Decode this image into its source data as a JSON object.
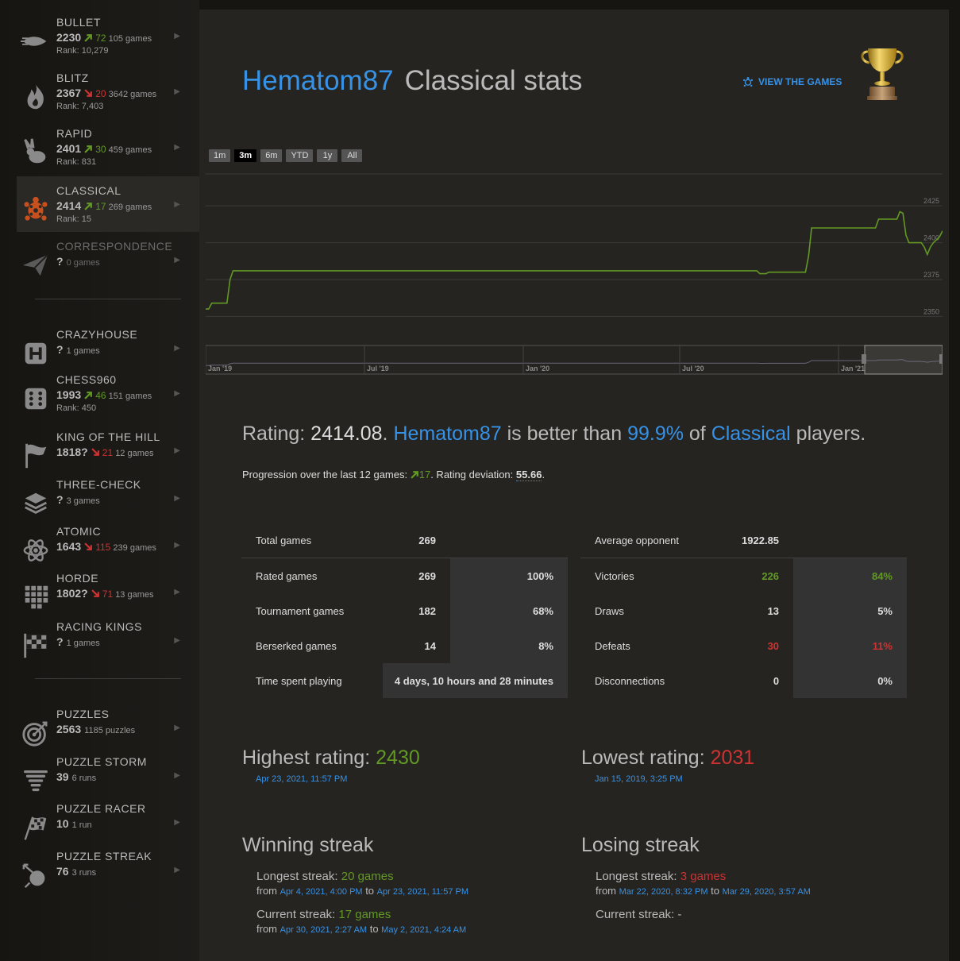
{
  "sidebar": {
    "perfs": [
      {
        "name": "BULLET",
        "rating": "2230",
        "dir": "up",
        "prog": "72",
        "count": "105 games",
        "rank": "Rank: 10,279",
        "icon": "bullet-icon"
      },
      {
        "name": "BLITZ",
        "rating": "2367",
        "dir": "down",
        "prog": "20",
        "count": "3642 games",
        "rank": "Rank: 7,403",
        "icon": "flame-icon"
      },
      {
        "name": "RAPID",
        "rating": "2401",
        "dir": "up",
        "prog": "30",
        "count": "459 games",
        "rank": "Rank: 831",
        "icon": "rabbit-icon"
      },
      {
        "name": "CLASSICAL",
        "rating": "2414",
        "dir": "up",
        "prog": "17",
        "count": "269 games",
        "rank": "Rank: 15",
        "icon": "turtle-icon"
      },
      {
        "name": "CORRESPONDENCE",
        "rating": "?",
        "dir": "",
        "prog": "",
        "count": "0 games",
        "rank": "",
        "icon": "paper-plane-icon"
      },
      {
        "name": "CRAZYHOUSE",
        "rating": "?",
        "dir": "",
        "prog": "",
        "count": "1 games",
        "rank": "",
        "icon": "crazyhouse-icon"
      },
      {
        "name": "CHESS960",
        "rating": "1993",
        "dir": "up",
        "prog": "46",
        "count": "151 games",
        "rank": "Rank: 450",
        "icon": "dice-icon"
      },
      {
        "name": "KING OF THE HILL",
        "rating": "1818?",
        "dir": "down",
        "prog": "21",
        "count": "12 games",
        "rank": "",
        "icon": "flag-icon"
      },
      {
        "name": "THREE-CHECK",
        "rating": "?",
        "dir": "",
        "prog": "",
        "count": "3 games",
        "rank": "",
        "icon": "layers-icon"
      },
      {
        "name": "ATOMIC",
        "rating": "1643",
        "dir": "down",
        "prog": "115",
        "count": "239 games",
        "rank": "",
        "icon": "atom-icon"
      },
      {
        "name": "HORDE",
        "rating": "1802?",
        "dir": "down",
        "prog": "71",
        "count": "13 games",
        "rank": "",
        "icon": "horde-icon"
      },
      {
        "name": "RACING KINGS",
        "rating": "?",
        "dir": "",
        "prog": "",
        "count": "1 games",
        "rank": "",
        "icon": "checkered-flag-icon"
      },
      {
        "name": "PUZZLES",
        "rating": "2563",
        "dir": "",
        "prog": "",
        "count": "1185 puzzles",
        "rank": "",
        "icon": "target-icon"
      },
      {
        "name": "PUZZLE STORM",
        "rating": "39",
        "dir": "",
        "prog": "",
        "count": "6 runs",
        "rank": "",
        "icon": "tornado-icon"
      },
      {
        "name": "PUZZLE RACER",
        "rating": "10",
        "dir": "",
        "prog": "",
        "count": "1 run",
        "rank": "",
        "icon": "racing-flag-icon"
      },
      {
        "name": "PUZZLE STREAK",
        "rating": "76",
        "dir": "",
        "prog": "",
        "count": "3 runs",
        "rank": "",
        "icon": "streak-icon"
      }
    ]
  },
  "header": {
    "username": "Hematom87",
    "title": "Classical stats",
    "view_games": "VIEW THE GAMES"
  },
  "range_buttons": [
    "1m",
    "3m",
    "6m",
    "YTD",
    "1y",
    "All"
  ],
  "range_selected": "3m",
  "chart_data": {
    "type": "line",
    "y_ticks": [
      "2425",
      "2400",
      "2375",
      "2350"
    ],
    "ylim": [
      2340,
      2445
    ],
    "x_ticks": [
      "Jan '19",
      "Jul '19",
      "Jan '20",
      "Jul '20",
      "Jan '21"
    ],
    "series": [
      {
        "values": [
          2355,
          2355,
          2359,
          2359,
          2359,
          2359,
          2359,
          2359,
          2375,
          2381,
          2381,
          2381,
          2381,
          2381,
          2381,
          2381,
          2381,
          2381,
          2381,
          2381,
          2381,
          2381,
          2381,
          2381,
          2381,
          2381,
          2381,
          2381,
          2381,
          2381,
          2381,
          2381,
          2381,
          2381,
          2381,
          2381,
          2381,
          2381,
          2381,
          2381,
          2381,
          2381,
          2381,
          2381,
          2381,
          2381,
          2381,
          2381,
          2381,
          2381,
          2381,
          2381,
          2381,
          2381,
          2381,
          2381,
          2381,
          2381,
          2381,
          2381,
          2381,
          2381,
          2381,
          2381,
          2381,
          2381,
          2381,
          2381,
          2381,
          2381,
          2381,
          2381,
          2381,
          2381,
          2381,
          2381,
          2381,
          2381,
          2381,
          2381,
          2381,
          2381,
          2381,
          2381,
          2381,
          2381,
          2381,
          2381,
          2381,
          2381,
          2381,
          2381,
          2381,
          2381,
          2381,
          2381,
          2381,
          2381,
          2381,
          2381,
          2381,
          2381,
          2381,
          2381,
          2381,
          2381,
          2381,
          2381,
          2381,
          2381,
          2381,
          2381,
          2381,
          2381,
          2381,
          2381,
          2381,
          2381,
          2381,
          2381,
          2381,
          2381,
          2381,
          2381,
          2381,
          2381,
          2381,
          2381,
          2381,
          2381,
          2381,
          2381,
          2381,
          2381,
          2381,
          2381,
          2381,
          2381,
          2381,
          2381,
          2381,
          2381,
          2381,
          2381,
          2381,
          2381,
          2381,
          2381,
          2381,
          2381,
          2381,
          2381,
          2381,
          2381,
          2381,
          2381,
          2381,
          2381,
          2381,
          2381,
          2381,
          2381,
          2381,
          2381,
          2381,
          2381,
          2381,
          2381,
          2381,
          2381,
          2381,
          2381,
          2381,
          2381,
          2381,
          2381,
          2381,
          2381,
          2381,
          2381,
          2381,
          2381,
          2379,
          2379,
          2379,
          2380,
          2380,
          2380,
          2380,
          2380,
          2380,
          2380,
          2380,
          2380,
          2380,
          2380,
          2380,
          2380,
          2391,
          2410,
          2410,
          2410,
          2410,
          2410,
          2410,
          2410,
          2410,
          2410,
          2410,
          2410,
          2410,
          2410,
          2410,
          2410,
          2410,
          2410,
          2410,
          2410,
          2410,
          2410,
          2410,
          2416,
          2416,
          2416,
          2416,
          2416,
          2416,
          2416,
          2421,
          2420,
          2405,
          2400,
          2400,
          2400,
          2400,
          2400,
          2397,
          2392,
          2397,
          2400,
          2402,
          2404,
          2408
        ]
      }
    ]
  },
  "rating_summary": {
    "prefix": "Rating: ",
    "rating": "2414.08",
    "dot": ". ",
    "user": "Hematom87",
    "better": " is better than ",
    "pct": "99.9%",
    "of": " of ",
    "variant": "Classical",
    "players": " players."
  },
  "progression": {
    "label": "Progression over the last 12 games: ",
    "value": "17",
    "dev_label": ". Rating deviation: ",
    "dev": "55.66",
    "end": "."
  },
  "left_table": [
    {
      "label": "Total games",
      "num": "269",
      "pct": ""
    },
    {
      "label": "Rated games",
      "num": "269",
      "pct": "100%"
    },
    {
      "label": "Tournament games",
      "num": "182",
      "pct": "68%"
    },
    {
      "label": "Berserked games",
      "num": "14",
      "pct": "8%"
    },
    {
      "label": "Time spent playing",
      "value": "4 days, 10 hours and 28 minutes"
    }
  ],
  "right_table": [
    {
      "label": "Average opponent",
      "num": "1922.85",
      "pct": ""
    },
    {
      "label": "Victories",
      "num": "226",
      "pct": "84%"
    },
    {
      "label": "Draws",
      "num": "13",
      "pct": "5%"
    },
    {
      "label": "Defeats",
      "num": "30",
      "pct": "11%"
    },
    {
      "label": "Disconnections",
      "num": "0",
      "pct": "0%"
    }
  ],
  "highest": {
    "label": "Highest rating: ",
    "value": "2430",
    "date": "Apr 23, 2021, 11:57 PM"
  },
  "lowest": {
    "label": "Lowest rating: ",
    "value": "2031",
    "date": "Jan 15, 2019, 3:25 PM"
  },
  "winning": {
    "title": "Winning streak",
    "longest_label": "Longest streak: ",
    "longest_n": "20",
    "games": " games",
    "longest_from": "Apr 4, 2021, 4:00 PM",
    "longest_to": "Apr 23, 2021, 11:57 PM",
    "current_label": "Current streak: ",
    "current_n": "17",
    "current_from": "Apr 30, 2021, 2:27 AM",
    "current_to": "May 2, 2021, 4:24 AM",
    "from": "from ",
    "to": " to "
  },
  "losing": {
    "title": "Losing streak",
    "longest_label": "Longest streak: ",
    "longest_n": "3",
    "games": " games",
    "longest_from": "Mar 22, 2020, 8:32 PM",
    "longest_to": "Mar 29, 2020, 3:57 AM",
    "current_label": "Current streak: -",
    "from": "from ",
    "to": " to "
  },
  "colors": {
    "accent": "#3692e7",
    "good": "#629924",
    "bad": "#cc3333",
    "line": "#629924"
  }
}
